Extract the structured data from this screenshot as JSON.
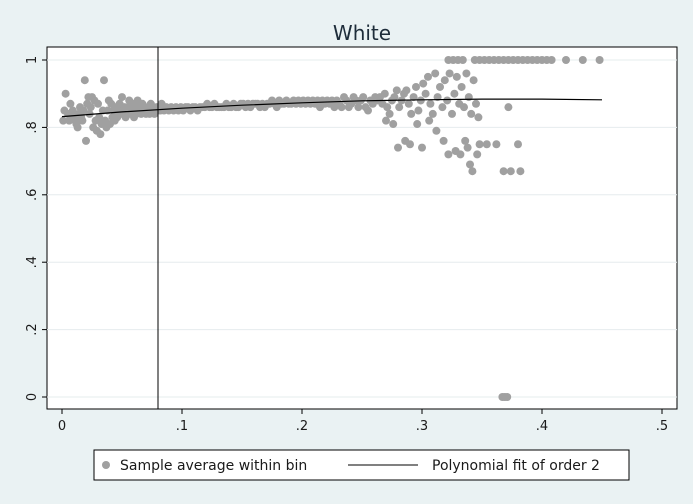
{
  "chart_data": {
    "type": "scatter",
    "title": "White",
    "xlabel": "",
    "ylabel": "",
    "xlim": [
      0,
      0.5
    ],
    "ylim": [
      0,
      1
    ],
    "xticks": [
      {
        "value": 0,
        "label": "0"
      },
      {
        "value": 0.1,
        "label": ".1"
      },
      {
        "value": 0.2,
        "label": ".2"
      },
      {
        "value": 0.3,
        "label": ".3"
      },
      {
        "value": 0.4,
        "label": ".4"
      },
      {
        "value": 0.5,
        "label": ".5"
      }
    ],
    "yticks": [
      {
        "value": 0,
        "label": "0"
      },
      {
        "value": 0.2,
        "label": ".2"
      },
      {
        "value": 0.4,
        "label": ".4"
      },
      {
        "value": 0.6,
        "label": ".6"
      },
      {
        "value": 0.8,
        "label": ".8"
      },
      {
        "value": 1,
        "label": "1"
      }
    ],
    "grid": "horizontal",
    "cutoff_x": 0.08,
    "series": [
      {
        "name": "Sample average within bin",
        "kind": "scatter",
        "color": "#a0a0a0",
        "points": [
          [
            0.001,
            0.82
          ],
          [
            0.002,
            0.85
          ],
          [
            0.003,
            0.9
          ],
          [
            0.005,
            0.84
          ],
          [
            0.006,
            0.82
          ],
          [
            0.007,
            0.87
          ],
          [
            0.008,
            0.83
          ],
          [
            0.009,
            0.85
          ],
          [
            0.01,
            0.83
          ],
          [
            0.011,
            0.82
          ],
          [
            0.012,
            0.81
          ],
          [
            0.013,
            0.8
          ],
          [
            0.014,
            0.84
          ],
          [
            0.015,
            0.86
          ],
          [
            0.016,
            0.83
          ],
          [
            0.017,
            0.82
          ],
          [
            0.018,
            0.85
          ],
          [
            0.019,
            0.94
          ],
          [
            0.02,
            0.76
          ],
          [
            0.021,
            0.87
          ],
          [
            0.022,
            0.89
          ],
          [
            0.023,
            0.84
          ],
          [
            0.024,
            0.86
          ],
          [
            0.025,
            0.89
          ],
          [
            0.026,
            0.8
          ],
          [
            0.027,
            0.88
          ],
          [
            0.028,
            0.82
          ],
          [
            0.029,
            0.79
          ],
          [
            0.03,
            0.87
          ],
          [
            0.031,
            0.83
          ],
          [
            0.032,
            0.78
          ],
          [
            0.033,
            0.81
          ],
          [
            0.034,
            0.85
          ],
          [
            0.035,
            0.94
          ],
          [
            0.036,
            0.82
          ],
          [
            0.037,
            0.8
          ],
          [
            0.038,
            0.85
          ],
          [
            0.039,
            0.88
          ],
          [
            0.04,
            0.81
          ],
          [
            0.041,
            0.87
          ],
          [
            0.042,
            0.83
          ],
          [
            0.043,
            0.85
          ],
          [
            0.044,
            0.82
          ],
          [
            0.045,
            0.86
          ],
          [
            0.046,
            0.83
          ],
          [
            0.047,
            0.85
          ],
          [
            0.048,
            0.87
          ],
          [
            0.049,
            0.84
          ],
          [
            0.05,
            0.89
          ],
          [
            0.051,
            0.85
          ],
          [
            0.052,
            0.86
          ],
          [
            0.053,
            0.83
          ],
          [
            0.054,
            0.84
          ],
          [
            0.055,
            0.86
          ],
          [
            0.056,
            0.88
          ],
          [
            0.057,
            0.84
          ],
          [
            0.058,
            0.85
          ],
          [
            0.059,
            0.87
          ],
          [
            0.06,
            0.83
          ],
          [
            0.061,
            0.86
          ],
          [
            0.062,
            0.84
          ],
          [
            0.063,
            0.88
          ],
          [
            0.064,
            0.85
          ],
          [
            0.065,
            0.86
          ],
          [
            0.066,
            0.84
          ],
          [
            0.067,
            0.87
          ],
          [
            0.068,
            0.85
          ],
          [
            0.069,
            0.86
          ],
          [
            0.07,
            0.84
          ],
          [
            0.071,
            0.85
          ],
          [
            0.072,
            0.86
          ],
          [
            0.073,
            0.84
          ],
          [
            0.074,
            0.87
          ],
          [
            0.075,
            0.85
          ],
          [
            0.076,
            0.86
          ],
          [
            0.077,
            0.84
          ],
          [
            0.078,
            0.85
          ],
          [
            0.079,
            0.86
          ],
          [
            0.08,
            0.85
          ],
          [
            0.081,
            0.86
          ],
          [
            0.082,
            0.85
          ],
          [
            0.083,
            0.87
          ],
          [
            0.085,
            0.85
          ],
          [
            0.087,
            0.86
          ],
          [
            0.089,
            0.85
          ],
          [
            0.091,
            0.86
          ],
          [
            0.093,
            0.85
          ],
          [
            0.095,
            0.86
          ],
          [
            0.097,
            0.85
          ],
          [
            0.099,
            0.86
          ],
          [
            0.101,
            0.85
          ],
          [
            0.103,
            0.86
          ],
          [
            0.105,
            0.86
          ],
          [
            0.107,
            0.85
          ],
          [
            0.109,
            0.86
          ],
          [
            0.111,
            0.86
          ],
          [
            0.113,
            0.85
          ],
          [
            0.115,
            0.86
          ],
          [
            0.117,
            0.86
          ],
          [
            0.119,
            0.86
          ],
          [
            0.121,
            0.87
          ],
          [
            0.123,
            0.86
          ],
          [
            0.125,
            0.86
          ],
          [
            0.127,
            0.87
          ],
          [
            0.129,
            0.86
          ],
          [
            0.131,
            0.86
          ],
          [
            0.133,
            0.86
          ],
          [
            0.135,
            0.86
          ],
          [
            0.137,
            0.87
          ],
          [
            0.139,
            0.86
          ],
          [
            0.141,
            0.86
          ],
          [
            0.143,
            0.87
          ],
          [
            0.145,
            0.86
          ],
          [
            0.147,
            0.86
          ],
          [
            0.149,
            0.87
          ],
          [
            0.151,
            0.87
          ],
          [
            0.153,
            0.86
          ],
          [
            0.155,
            0.87
          ],
          [
            0.157,
            0.86
          ],
          [
            0.159,
            0.87
          ],
          [
            0.161,
            0.87
          ],
          [
            0.163,
            0.87
          ],
          [
            0.165,
            0.86
          ],
          [
            0.167,
            0.87
          ],
          [
            0.169,
            0.86
          ],
          [
            0.171,
            0.87
          ],
          [
            0.173,
            0.87
          ],
          [
            0.175,
            0.88
          ],
          [
            0.177,
            0.87
          ],
          [
            0.179,
            0.86
          ],
          [
            0.181,
            0.88
          ],
          [
            0.183,
            0.87
          ],
          [
            0.185,
            0.87
          ],
          [
            0.187,
            0.88
          ],
          [
            0.189,
            0.87
          ],
          [
            0.191,
            0.87
          ],
          [
            0.193,
            0.88
          ],
          [
            0.195,
            0.87
          ],
          [
            0.197,
            0.88
          ],
          [
            0.199,
            0.87
          ],
          [
            0.201,
            0.88
          ],
          [
            0.203,
            0.87
          ],
          [
            0.205,
            0.88
          ],
          [
            0.207,
            0.87
          ],
          [
            0.209,
            0.88
          ],
          [
            0.211,
            0.87
          ],
          [
            0.213,
            0.88
          ],
          [
            0.215,
            0.86
          ],
          [
            0.217,
            0.88
          ],
          [
            0.219,
            0.87
          ],
          [
            0.221,
            0.88
          ],
          [
            0.223,
            0.87
          ],
          [
            0.225,
            0.88
          ],
          [
            0.227,
            0.86
          ],
          [
            0.229,
            0.88
          ],
          [
            0.231,
            0.87
          ],
          [
            0.233,
            0.86
          ],
          [
            0.235,
            0.89
          ],
          [
            0.237,
            0.88
          ],
          [
            0.239,
            0.86
          ],
          [
            0.241,
            0.87
          ],
          [
            0.243,
            0.89
          ],
          [
            0.245,
            0.88
          ],
          [
            0.247,
            0.86
          ],
          [
            0.249,
            0.88
          ],
          [
            0.251,
            0.89
          ],
          [
            0.253,
            0.86
          ],
          [
            0.255,
            0.85
          ],
          [
            0.257,
            0.88
          ],
          [
            0.259,
            0.87
          ],
          [
            0.261,
            0.89
          ],
          [
            0.263,
            0.88
          ],
          [
            0.265,
            0.89
          ],
          [
            0.267,
            0.87
          ],
          [
            0.269,
            0.9
          ],
          [
            0.271,
            0.86
          ],
          [
            0.273,
            0.84
          ],
          [
            0.275,
            0.88
          ],
          [
            0.277,
            0.89
          ],
          [
            0.279,
            0.91
          ],
          [
            0.281,
            0.86
          ],
          [
            0.283,
            0.88
          ],
          [
            0.285,
            0.9
          ],
          [
            0.287,
            0.91
          ],
          [
            0.289,
            0.87
          ],
          [
            0.291,
            0.84
          ],
          [
            0.293,
            0.89
          ],
          [
            0.295,
            0.92
          ],
          [
            0.297,
            0.85
          ],
          [
            0.299,
            0.88
          ],
          [
            0.301,
            0.93
          ],
          [
            0.303,
            0.9
          ],
          [
            0.305,
            0.95
          ],
          [
            0.307,
            0.87
          ],
          [
            0.309,
            0.84
          ],
          [
            0.311,
            0.96
          ],
          [
            0.313,
            0.89
          ],
          [
            0.315,
            0.92
          ],
          [
            0.317,
            0.86
          ],
          [
            0.319,
            0.94
          ],
          [
            0.321,
            0.88
          ],
          [
            0.323,
            0.96
          ],
          [
            0.325,
            0.84
          ],
          [
            0.327,
            0.9
          ],
          [
            0.329,
            0.95
          ],
          [
            0.331,
            0.87
          ],
          [
            0.333,
            0.92
          ],
          [
            0.335,
            0.86
          ],
          [
            0.337,
            0.96
          ],
          [
            0.339,
            0.89
          ],
          [
            0.341,
            0.84
          ],
          [
            0.343,
            0.94
          ],
          [
            0.345,
            0.87
          ],
          [
            0.347,
            0.83
          ],
          [
            0.27,
            0.82
          ],
          [
            0.276,
            0.81
          ],
          [
            0.28,
            0.74
          ],
          [
            0.286,
            0.76
          ],
          [
            0.29,
            0.75
          ],
          [
            0.296,
            0.81
          ],
          [
            0.3,
            0.74
          ],
          [
            0.306,
            0.82
          ],
          [
            0.312,
            0.79
          ],
          [
            0.318,
            0.76
          ],
          [
            0.322,
            0.72
          ],
          [
            0.328,
            0.73
          ],
          [
            0.332,
            0.72
          ],
          [
            0.336,
            0.76
          ],
          [
            0.338,
            0.74
          ],
          [
            0.34,
            0.69
          ],
          [
            0.342,
            0.67
          ],
          [
            0.346,
            0.72
          ],
          [
            0.348,
            0.75
          ],
          [
            0.354,
            0.75
          ],
          [
            0.362,
            0.75
          ],
          [
            0.368,
            0.67
          ],
          [
            0.374,
            0.67
          ],
          [
            0.38,
            0.75
          ],
          [
            0.382,
            0.67
          ],
          [
            0.372,
            0.86
          ],
          [
            0.322,
            1
          ],
          [
            0.326,
            1
          ],
          [
            0.33,
            1
          ],
          [
            0.334,
            1
          ],
          [
            0.344,
            1
          ],
          [
            0.348,
            1
          ],
          [
            0.352,
            1
          ],
          [
            0.356,
            1
          ],
          [
            0.36,
            1
          ],
          [
            0.364,
            1
          ],
          [
            0.368,
            1
          ],
          [
            0.372,
            1
          ],
          [
            0.376,
            1
          ],
          [
            0.38,
            1
          ],
          [
            0.384,
            1
          ],
          [
            0.388,
            1
          ],
          [
            0.392,
            1
          ],
          [
            0.396,
            1
          ],
          [
            0.4,
            1
          ],
          [
            0.404,
            1
          ],
          [
            0.408,
            1
          ],
          [
            0.42,
            1
          ],
          [
            0.434,
            1
          ],
          [
            0.448,
            1
          ],
          [
            0.367,
            0
          ],
          [
            0.369,
            0
          ],
          [
            0.371,
            0
          ]
        ]
      },
      {
        "name": "Polynomial fit of order 2",
        "kind": "line",
        "color": "#000000",
        "x": [
          0.0,
          0.05,
          0.1,
          0.15,
          0.2,
          0.25,
          0.3,
          0.35,
          0.4,
          0.45
        ],
        "y": [
          0.832,
          0.846,
          0.857,
          0.866,
          0.873,
          0.879,
          0.882,
          0.884,
          0.884,
          0.882
        ]
      }
    ],
    "legend": {
      "placement": "bottom",
      "entries": [
        "Sample average within bin",
        "Polynomial fit of order 2"
      ]
    }
  }
}
